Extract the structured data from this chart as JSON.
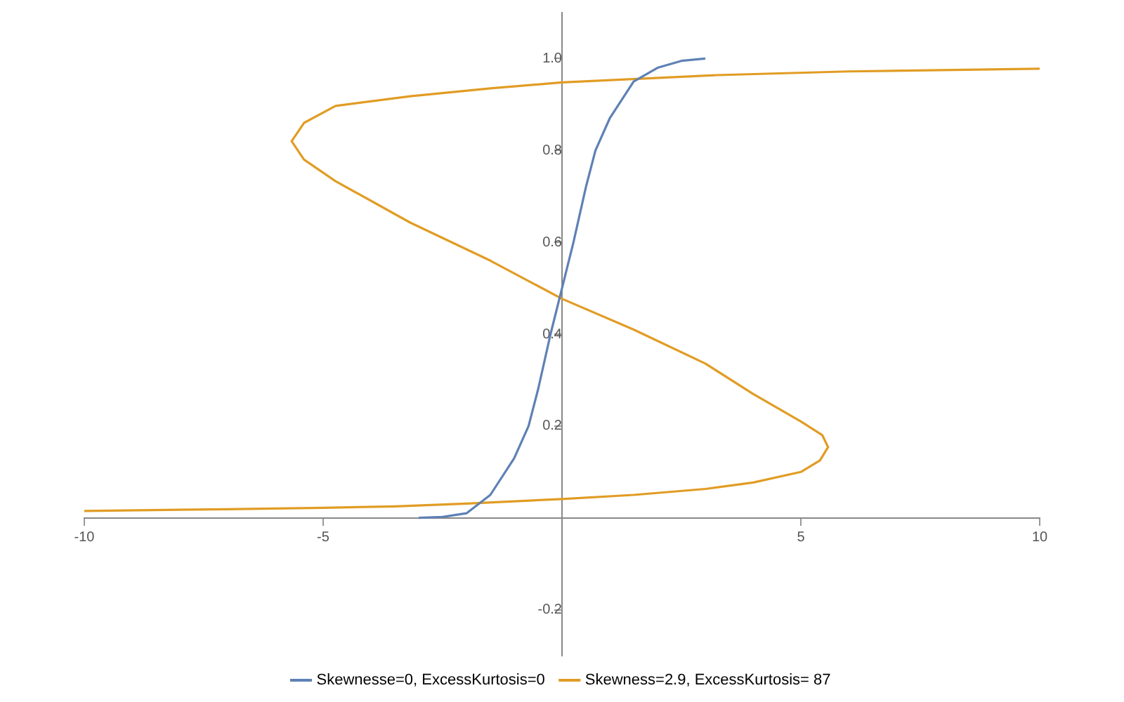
{
  "chart_data": {
    "type": "line",
    "xlim": [
      -10,
      10
    ],
    "ylim": [
      -0.3,
      1.1
    ],
    "xticks": [
      -10,
      -5,
      5,
      10
    ],
    "yticks": [
      -0.2,
      0.2,
      0.4,
      0.6,
      0.8,
      {
        "value": 1,
        "label": "1.0"
      }
    ],
    "grid": false,
    "legend": "bottom",
    "marker": "none",
    "line_style": "solid",
    "series": [
      {
        "name": "Skewnesse=0, ExcessKurtosis=0",
        "color": "#5e81b5",
        "x": [
          -3,
          -2.5,
          -2,
          -1.5,
          -1,
          -0.7,
          -0.5,
          -0.24,
          0,
          0.24,
          0.5,
          0.7,
          1,
          1.5,
          2,
          2.5,
          3
        ],
        "values": [
          0,
          0.002,
          0.01,
          0.05,
          0.13,
          0.2,
          0.28,
          0.4,
          0.5,
          0.6,
          0.72,
          0.8,
          0.87,
          0.95,
          0.98,
          0.995,
          1
        ]
      },
      {
        "name": "Skewness=2.9, ExcessKurtosis= 87",
        "color": "#e19c24",
        "x": [
          -10,
          -7,
          -5,
          -3.5,
          -2,
          0,
          1.5,
          3,
          4,
          5,
          5.4,
          5.57,
          5.45,
          5,
          4,
          3,
          1.5,
          0,
          -1.5,
          -3.18,
          -4.74,
          -5.4,
          -5.66,
          -5.4,
          -4.74,
          -3.18,
          -1.5,
          0,
          3.24,
          6,
          10
        ],
        "values": [
          0.015,
          0.019,
          0.022,
          0.025,
          0.031,
          0.041,
          0.05,
          0.063,
          0.077,
          0.1,
          0.125,
          0.154,
          0.18,
          0.21,
          0.27,
          0.336,
          0.41,
          0.477,
          0.56,
          0.643,
          0.733,
          0.78,
          0.82,
          0.86,
          0.897,
          0.918,
          0.935,
          0.948,
          0.964,
          0.972,
          0.978
        ]
      }
    ]
  }
}
